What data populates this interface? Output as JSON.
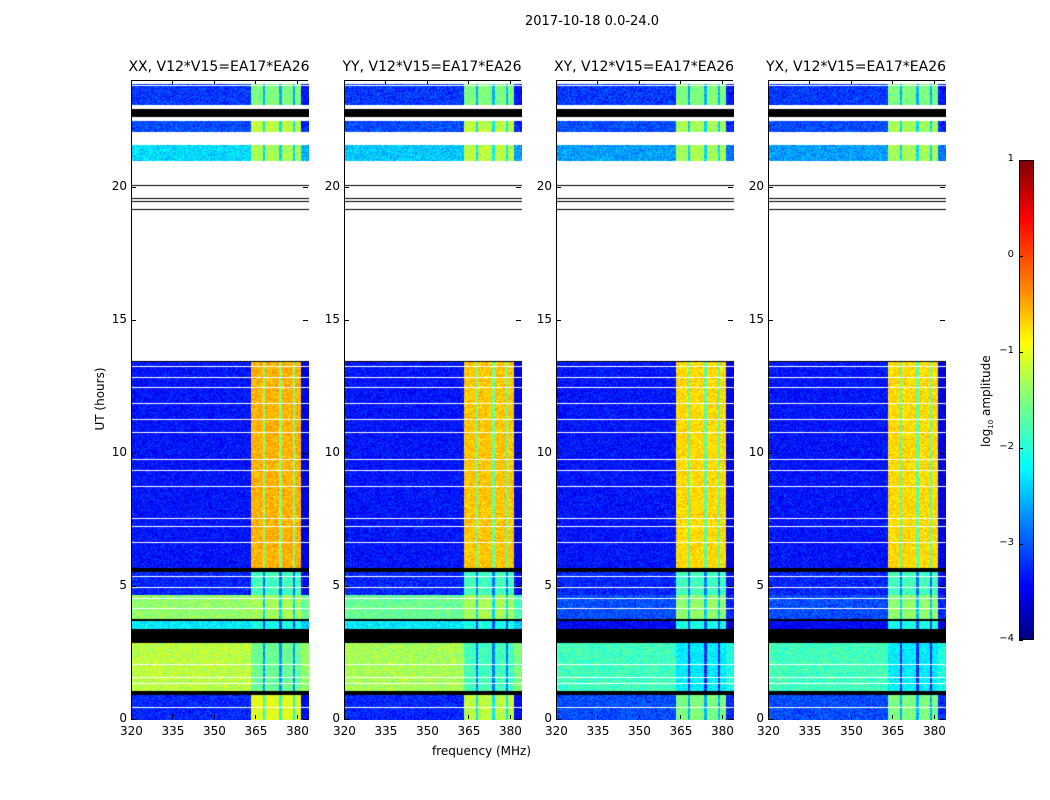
{
  "chart_data": {
    "type": "heatmap",
    "title": "2017-10-18 0.0-24.0",
    "xlabel": "frequency (MHz)",
    "ylabel": "UT (hours)",
    "xlim": [
      320,
      384
    ],
    "ylim": [
      0,
      24
    ],
    "xticks": [
      "320",
      "335",
      "350",
      "365",
      "380"
    ],
    "xtick_values": [
      320,
      335,
      350,
      365,
      380
    ],
    "yticks": [
      "0",
      "5",
      "10",
      "15",
      "20"
    ],
    "ytick_values": [
      0,
      5,
      10,
      15,
      20
    ],
    "colorbar": {
      "label": "log10 amplitude",
      "label_main": "log",
      "label_sub": "10",
      "label_rest": " amplitude",
      "range": [
        -4,
        1
      ],
      "ticks": [
        "1",
        "0",
        "−1",
        "−2",
        "−3",
        "−4"
      ],
      "tick_values": [
        1,
        0,
        -1,
        -2,
        -3,
        -4
      ],
      "colormap": "jet"
    },
    "band_mhz": [
      363,
      381
    ],
    "band_gaps_mhz": [
      367.5,
      373.5,
      378.5
    ],
    "segments": [
      {
        "t": [
          0,
          0.95
        ],
        "kind": "data",
        "bg": [
          -3.2,
          -3.2,
          -3.0,
          -3.0
        ],
        "band": [
          -1.0,
          -1.2,
          -1.5,
          -1.5
        ]
      },
      {
        "t": [
          0.95,
          1.1
        ],
        "kind": "flag"
      },
      {
        "t": [
          1.1,
          2.9
        ],
        "kind": "data",
        "bg": [
          -1.2,
          -1.3,
          -1.8,
          -1.8
        ],
        "band": [
          -1.6,
          -1.8,
          -2.2,
          -2.2
        ]
      },
      {
        "t": [
          2.9,
          3.4
        ],
        "kind": "flag"
      },
      {
        "t": [
          3.4,
          3.7
        ],
        "kind": "data",
        "bg": [
          -2.2,
          -2.2,
          -3.4,
          -3.4
        ],
        "band": [
          -2.0,
          -2.0,
          -2.0,
          -2.0
        ]
      },
      {
        "t": [
          3.7,
          3.8
        ],
        "kind": "flag"
      },
      {
        "t": [
          3.8,
          4.7
        ],
        "kind": "data",
        "bg": [
          -1.4,
          -1.6,
          -3.0,
          -3.0
        ],
        "band": [
          -1.3,
          -1.3,
          -1.4,
          -1.4
        ]
      },
      {
        "t": [
          4.7,
          5.55
        ],
        "kind": "data",
        "bg": [
          -3.2,
          -3.2,
          -3.2,
          -3.2
        ],
        "band": [
          -1.8,
          -1.8,
          -1.8,
          -1.8
        ]
      },
      {
        "t": [
          5.55,
          5.7
        ],
        "kind": "flag"
      },
      {
        "t": [
          5.7,
          13.5
        ],
        "kind": "data",
        "bg": [
          -3.3,
          -3.3,
          -3.3,
          -3.3
        ],
        "band": [
          -0.5,
          -0.6,
          -0.7,
          -0.7
        ]
      },
      {
        "t": [
          13.5,
          19.2
        ],
        "kind": "empty"
      },
      {
        "t": [
          21.0,
          21.6
        ],
        "kind": "data",
        "bg": [
          -2.3,
          -2.4,
          -2.6,
          -2.6
        ],
        "band": [
          -1.3,
          -1.2,
          -1.3,
          -1.3
        ]
      },
      {
        "t": [
          22.1,
          22.5
        ],
        "kind": "data",
        "bg": [
          -3.0,
          -3.0,
          -3.0,
          -3.0
        ],
        "band": [
          -1.2,
          -1.2,
          -1.3,
          -1.3
        ]
      },
      {
        "t": [
          22.65,
          22.95
        ],
        "kind": "flag"
      },
      {
        "t": [
          23.05,
          23.9
        ],
        "kind": "data",
        "bg": [
          -3.1,
          -3.1,
          -3.1,
          -3.1
        ],
        "band": [
          -1.5,
          -1.5,
          -1.5,
          -1.5
        ]
      }
    ],
    "hlines_hours": [
      19.2,
      19.5,
      19.6,
      20.1,
      22.05,
      22.55,
      23.0,
      23.1,
      23.85,
      13.5,
      13.3,
      12.9,
      12.5,
      11.9,
      11.3,
      10.8,
      9.8,
      9.4,
      8.8,
      7.6,
      7.3,
      6.7,
      5.4,
      5.0,
      4.6,
      4.2,
      2.1,
      1.6,
      1.4,
      0.5
    ],
    "panels": [
      {
        "title": "XX, V12*V15=EA17*EA26"
      },
      {
        "title": "YY, V12*V15=EA17*EA26"
      },
      {
        "title": "XY, V12*V15=EA17*EA26"
      },
      {
        "title": "YX, V12*V15=EA17*EA26"
      }
    ]
  }
}
